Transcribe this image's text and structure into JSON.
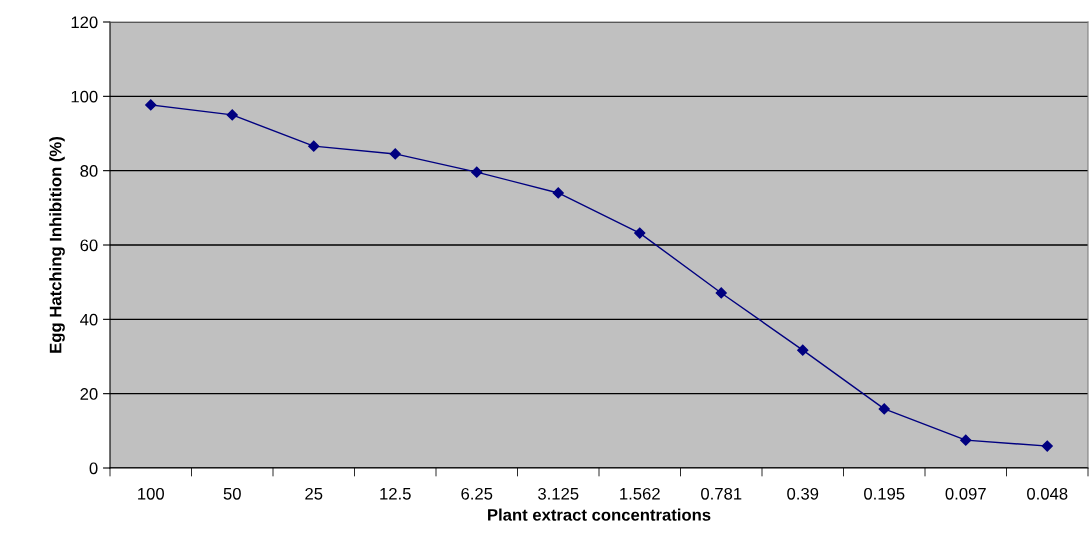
{
  "chart_data": {
    "type": "line",
    "xlabel": "Plant extract concentrations",
    "ylabel": "Egg Hatching Inhibition (%)",
    "categories": [
      "100",
      "50",
      "25",
      "12.5",
      "6.25",
      "3.125",
      "1.562",
      "0.781",
      "0.39",
      "0.195",
      "0.097",
      "0.048"
    ],
    "values": [
      97.7,
      95.0,
      86.6,
      84.5,
      79.6,
      74.0,
      63.2,
      47.1,
      31.7,
      15.9,
      7.5,
      5.9
    ],
    "color": "#000080",
    "marker": "diamond",
    "line_style": "solid",
    "ylim": [
      0,
      120
    ],
    "yticks": [
      0,
      20,
      40,
      60,
      80,
      100,
      120
    ],
    "grid": "y"
  }
}
